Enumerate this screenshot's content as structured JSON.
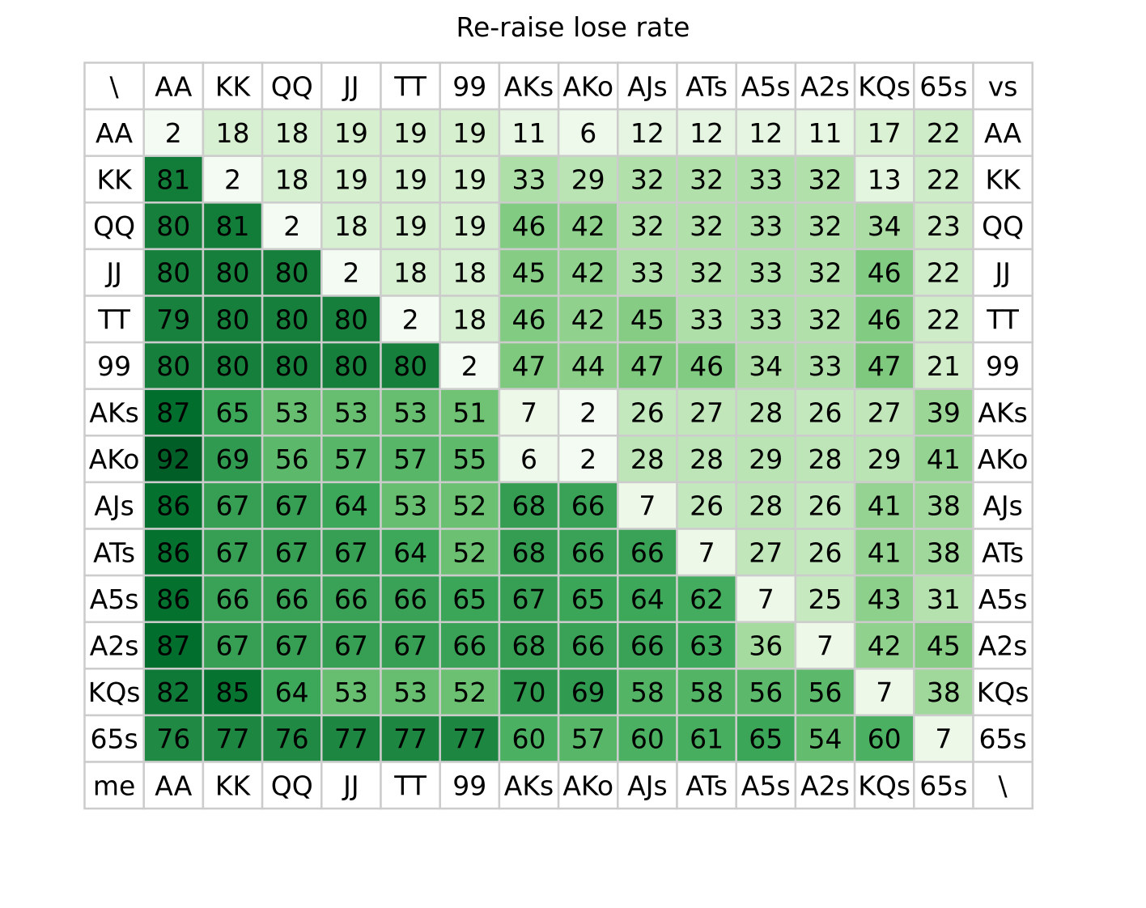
{
  "chart_data": {
    "type": "heatmap",
    "title": "Re-raise lose rate",
    "corner_top_left": "\\",
    "top_right_label": "vs",
    "bottom_left_label": "me",
    "corner_bottom_right": "\\",
    "columns": [
      "AA",
      "KK",
      "QQ",
      "JJ",
      "TT",
      "99",
      "AKs",
      "AKo",
      "AJs",
      "ATs",
      "A5s",
      "A2s",
      "KQs",
      "65s"
    ],
    "rows": [
      "AA",
      "KK",
      "QQ",
      "JJ",
      "TT",
      "99",
      "AKs",
      "AKo",
      "AJs",
      "ATs",
      "A5s",
      "A2s",
      "KQs",
      "65s"
    ],
    "values": [
      [
        2,
        18,
        18,
        19,
        19,
        19,
        11,
        6,
        12,
        12,
        12,
        11,
        17,
        22
      ],
      [
        81,
        2,
        18,
        19,
        19,
        19,
        33,
        29,
        32,
        32,
        33,
        32,
        13,
        22
      ],
      [
        80,
        81,
        2,
        18,
        19,
        19,
        46,
        42,
        32,
        32,
        33,
        32,
        34,
        23
      ],
      [
        80,
        80,
        80,
        2,
        18,
        18,
        45,
        42,
        33,
        32,
        33,
        32,
        46,
        22
      ],
      [
        79,
        80,
        80,
        80,
        2,
        18,
        46,
        42,
        45,
        33,
        33,
        32,
        46,
        22
      ],
      [
        80,
        80,
        80,
        80,
        80,
        2,
        47,
        44,
        47,
        46,
        34,
        33,
        47,
        21
      ],
      [
        87,
        65,
        53,
        53,
        53,
        51,
        7,
        2,
        26,
        27,
        28,
        26,
        27,
        39
      ],
      [
        92,
        69,
        56,
        57,
        57,
        55,
        6,
        2,
        28,
        28,
        29,
        28,
        29,
        41
      ],
      [
        86,
        67,
        67,
        64,
        53,
        52,
        68,
        66,
        7,
        26,
        28,
        26,
        41,
        38
      ],
      [
        86,
        67,
        67,
        67,
        64,
        52,
        68,
        66,
        66,
        7,
        27,
        26,
        41,
        38
      ],
      [
        86,
        66,
        66,
        66,
        66,
        65,
        67,
        65,
        64,
        62,
        7,
        25,
        43,
        31
      ],
      [
        87,
        67,
        67,
        67,
        67,
        66,
        68,
        66,
        66,
        63,
        36,
        7,
        42,
        45
      ],
      [
        82,
        85,
        64,
        53,
        53,
        52,
        70,
        69,
        58,
        58,
        56,
        56,
        7,
        38
      ],
      [
        76,
        77,
        76,
        77,
        77,
        77,
        60,
        57,
        60,
        61,
        65,
        54,
        60,
        7
      ]
    ],
    "value_range": [
      0,
      100
    ],
    "colormap": "Greens",
    "grid": true
  }
}
